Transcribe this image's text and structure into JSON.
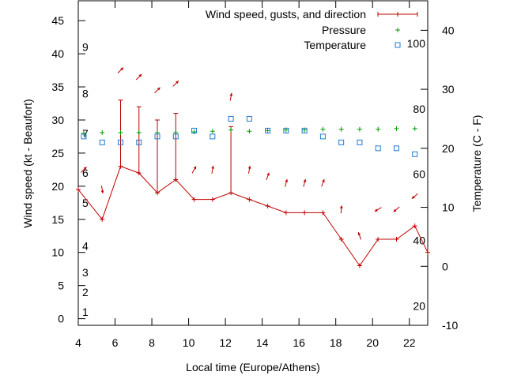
{
  "chart_data": {
    "type": "line",
    "xlabel": "Local time (Europe/Athens)",
    "ylabel_left": "Wind speed (kt - Beaufort)",
    "ylabel_right": "Temperature (C - F)",
    "x_range": [
      4,
      23
    ],
    "x_ticks": [
      4,
      6,
      8,
      10,
      12,
      14,
      16,
      18,
      20,
      22
    ],
    "y_left_range": [
      -1,
      48
    ],
    "y_left_ticks": [
      0,
      5,
      10,
      15,
      20,
      25,
      30,
      35,
      40,
      45
    ],
    "y_right_range": [
      -10,
      45
    ],
    "y_right_ticks": [
      -10,
      0,
      10,
      20,
      30,
      40
    ],
    "beaufort_labels": [
      {
        "label": "1",
        "y": 1
      },
      {
        "label": "2",
        "y": 4
      },
      {
        "label": "3",
        "y": 7
      },
      {
        "label": "4",
        "y": 11
      },
      {
        "label": "5",
        "y": 17.5
      },
      {
        "label": "6",
        "y": 22
      },
      {
        "label": "7",
        "y": 28
      },
      {
        "label": "8",
        "y": 34
      },
      {
        "label": "9",
        "y": 41
      }
    ],
    "fahrenheit_labels": [
      {
        "label": "20",
        "y": -6.7
      },
      {
        "label": "40",
        "y": 4.4
      },
      {
        "label": "60",
        "y": 15.6
      },
      {
        "label": "80",
        "y": 26.7
      },
      {
        "label": "100",
        "y": 37.8
      }
    ],
    "legend": {
      "position": "top-right",
      "entries": [
        {
          "name": "Wind speed, gusts, and direction",
          "color": "#c00000",
          "marker": "plus-line"
        },
        {
          "name": "Pressure",
          "color": "#009e00",
          "marker": "plus"
        },
        {
          "name": "Temperature",
          "color": "#1f7ad3",
          "marker": "square"
        }
      ]
    },
    "series": [
      {
        "name": "Wind speed, gusts, and direction",
        "color": "#c00000",
        "x": [
          4,
          5.3,
          6.3,
          7.3,
          8.3,
          9.3,
          10.3,
          11.3,
          12.3,
          13.3,
          14.3,
          15.3,
          16.3,
          17.3,
          18.3,
          19.3,
          20.3,
          21.3,
          22.3,
          23
        ],
        "speed": [
          19.5,
          15,
          23,
          22,
          19,
          21,
          18,
          18,
          19,
          18,
          17,
          16,
          16,
          16,
          12,
          8,
          12,
          12,
          14,
          10
        ],
        "gust": [
          null,
          null,
          33,
          32,
          30,
          31,
          null,
          null,
          29,
          null,
          null,
          null,
          null,
          null,
          null,
          null,
          null,
          null,
          null,
          null
        ]
      },
      {
        "name": "Pressure",
        "color": "#009e00",
        "x": [
          4.3,
          5.3,
          6.3,
          7.3,
          8.3,
          9.3,
          10.3,
          11.3,
          12.3,
          13.3,
          14.3,
          15.3,
          16.3,
          17.3,
          18.3,
          19.3,
          20.3,
          21.3,
          22.3
        ],
        "y_left": [
          28,
          28.1,
          28.1,
          28.1,
          28.1,
          28.1,
          28.2,
          28.3,
          28.5,
          28.3,
          28.4,
          28.5,
          28.5,
          28.6,
          28.6,
          28.6,
          28.6,
          28.7,
          28.7
        ]
      },
      {
        "name": "Temperature",
        "color": "#1f7ad3",
        "x": [
          4.3,
          5.3,
          6.3,
          7.3,
          8.3,
          9.3,
          10.3,
          11.3,
          12.3,
          13.3,
          14.3,
          15.3,
          16.3,
          17.3,
          18.3,
          19.3,
          20.3,
          21.3,
          22.3
        ],
        "temperature_c": [
          22,
          21,
          21,
          21,
          22,
          22,
          23,
          22,
          25,
          25,
          23,
          23,
          23,
          22,
          21,
          21,
          20,
          20,
          19
        ]
      }
    ],
    "wind_arrows": [
      {
        "x": 4.3,
        "y": 22.5,
        "dir": 135
      },
      {
        "x": 5.3,
        "y": 19.5,
        "dir": 10
      },
      {
        "x": 6.3,
        "y": 37.5,
        "dir": 135
      },
      {
        "x": 7.3,
        "y": 36.5,
        "dir": 135
      },
      {
        "x": 8.3,
        "y": 34.5,
        "dir": 135
      },
      {
        "x": 9.3,
        "y": 35.5,
        "dir": 135
      },
      {
        "x": 10.3,
        "y": 22.5,
        "dir": 150
      },
      {
        "x": 11.3,
        "y": 22.5,
        "dir": 170
      },
      {
        "x": 12.3,
        "y": 33.5,
        "dir": 170
      },
      {
        "x": 13.3,
        "y": 22.5,
        "dir": 170
      },
      {
        "x": 14.3,
        "y": 21.5,
        "dir": 160
      },
      {
        "x": 15.3,
        "y": 20.5,
        "dir": 165
      },
      {
        "x": 16.3,
        "y": 20.5,
        "dir": 165
      },
      {
        "x": 17.3,
        "y": 20.5,
        "dir": 160
      },
      {
        "x": 18.3,
        "y": 16.5,
        "dir": 175
      },
      {
        "x": 19.3,
        "y": 12.5,
        "dir": 200
      },
      {
        "x": 20.3,
        "y": 16.5,
        "dir": 300
      },
      {
        "x": 21.3,
        "y": 16.5,
        "dir": 310
      },
      {
        "x": 22.3,
        "y": 18.5,
        "dir": 310
      }
    ]
  }
}
